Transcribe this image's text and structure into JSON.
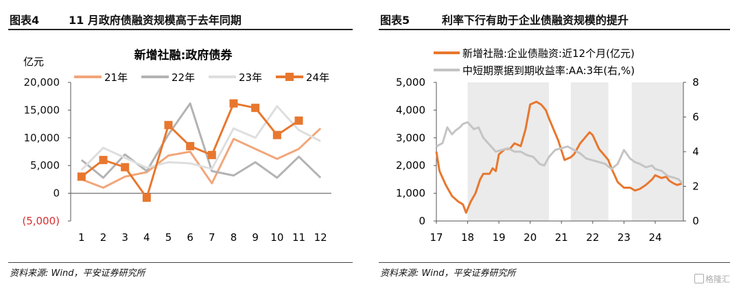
{
  "watermark": "格隆汇",
  "left": {
    "figure_id": "图表4",
    "figure_title": "11 月政府债融资规模高于去年同期",
    "source": "资料来源: Wind，平安证券研究所"
  },
  "right": {
    "figure_id": "图表5",
    "figure_title": "利率下行有助于企业债融资规模的提升",
    "source": "资料来源: Wind，平安证券研究所"
  },
  "chart_data": [
    {
      "type": "line",
      "title": "新增社融:政府债券",
      "ylabel": "亿元",
      "xlabel": "",
      "ylim": [
        -5000,
        20000
      ],
      "yticks": [
        {
          "value": 20000,
          "label": "20,000",
          "color": "#111111"
        },
        {
          "value": 15000,
          "label": "15,000",
          "color": "#111111"
        },
        {
          "value": 10000,
          "label": "10,000",
          "color": "#111111"
        },
        {
          "value": 5000,
          "label": "5,000",
          "color": "#111111"
        },
        {
          "value": 0,
          "label": "0",
          "color": "#111111"
        },
        {
          "value": -5000,
          "label": "(5,000)",
          "color": "#d62e2e"
        }
      ],
      "categories": [
        "1",
        "2",
        "3",
        "4",
        "5",
        "6",
        "7",
        "8",
        "9",
        "10",
        "11",
        "12"
      ],
      "legend_position": "top",
      "series": [
        {
          "name": "21年",
          "color": "#f2a67a",
          "marker": false,
          "values": [
            2500,
            1000,
            3000,
            3800,
            6800,
            7500,
            1800,
            9800,
            8000,
            6200,
            8000,
            11700
          ]
        },
        {
          "name": "22年",
          "color": "#b3b3b3",
          "marker": false,
          "values": [
            6000,
            2800,
            7000,
            4000,
            10600,
            16200,
            4000,
            3200,
            5600,
            2800,
            6600,
            2800
          ]
        },
        {
          "name": "23年",
          "color": "#dedede",
          "marker": false,
          "values": [
            4200,
            8200,
            6400,
            4600,
            5600,
            5400,
            4400,
            11700,
            10000,
            15700,
            11400,
            9400
          ]
        },
        {
          "name": "24年",
          "color": "#e8772e",
          "marker": true,
          "values": [
            3000,
            6000,
            4700,
            -800,
            12300,
            8500,
            6900,
            16200,
            15400,
            10500,
            13100,
            null
          ]
        }
      ]
    },
    {
      "type": "line",
      "title": "",
      "ylim": [
        0,
        5000
      ],
      "y2lim": [
        0,
        8
      ],
      "xlim": [
        2017,
        2024.9
      ],
      "yticks": [
        "5,000",
        "4,000",
        "3,000",
        "2,000",
        "1,000",
        "0"
      ],
      "y2ticks": [
        "8",
        "6",
        "4",
        "2",
        "0"
      ],
      "xticks": [
        "17",
        "18",
        "19",
        "20",
        "21",
        "22",
        "23",
        "24"
      ],
      "legend_position": "top-left",
      "shaded_periods": [
        [
          2018.0,
          2020.6
        ],
        [
          2021.3,
          2022.5
        ],
        [
          2023.25,
          2024.9
        ]
      ],
      "series": [
        {
          "name": "新增社融:企业债融资:近12个月(亿元)",
          "color": "#e8772e",
          "axis": "left",
          "x": [
            2017.0,
            2017.1,
            2017.3,
            2017.5,
            2017.7,
            2017.85,
            2017.95,
            2018.1,
            2018.25,
            2018.4,
            2018.5,
            2018.7,
            2018.8,
            2018.9,
            2019.0,
            2019.2,
            2019.35,
            2019.5,
            2019.7,
            2019.85,
            2020.0,
            2020.2,
            2020.35,
            2020.5,
            2020.6,
            2020.75,
            2020.9,
            2021.1,
            2021.3,
            2021.4,
            2021.6,
            2021.75,
            2021.9,
            2022.0,
            2022.2,
            2022.35,
            2022.5,
            2022.6,
            2022.8,
            2023.0,
            2023.2,
            2023.35,
            2023.5,
            2023.7,
            2023.9,
            2024.0,
            2024.1,
            2024.2,
            2024.35,
            2024.45,
            2024.6,
            2024.7,
            2024.85
          ],
          "y": [
            2500,
            1800,
            1300,
            900,
            700,
            600,
            300,
            700,
            1000,
            1500,
            1700,
            1700,
            1900,
            1800,
            2400,
            2600,
            2600,
            2800,
            2700,
            3300,
            4200,
            4300,
            4200,
            4000,
            3700,
            3300,
            2900,
            2200,
            2300,
            2400,
            2800,
            3000,
            3200,
            3100,
            2600,
            2400,
            2200,
            1900,
            1400,
            1200,
            1200,
            1100,
            1150,
            1300,
            1500,
            1650,
            1600,
            1550,
            1600,
            1450,
            1350,
            1300,
            1350
          ]
        },
        {
          "name": "中短期票据到期收益率:AA:3年(右,%)",
          "color": "#c4c4c4",
          "axis": "right",
          "x": [
            2017.0,
            2017.2,
            2017.35,
            2017.5,
            2017.6,
            2017.75,
            2017.85,
            2018.0,
            2018.2,
            2018.35,
            2018.5,
            2018.7,
            2018.9,
            2019.1,
            2019.3,
            2019.5,
            2019.7,
            2019.9,
            2020.1,
            2020.3,
            2020.45,
            2020.6,
            2020.8,
            2021.0,
            2021.2,
            2021.4,
            2021.6,
            2021.8,
            2022.0,
            2022.2,
            2022.4,
            2022.6,
            2022.8,
            2023.0,
            2023.2,
            2023.35,
            2023.5,
            2023.7,
            2023.9,
            2024.0,
            2024.2,
            2024.4,
            2024.6,
            2024.75,
            2024.85
          ],
          "y": [
            4.3,
            4.5,
            5.4,
            5.0,
            5.2,
            5.4,
            5.6,
            5.7,
            5.3,
            5.4,
            4.8,
            4.4,
            4.0,
            4.1,
            4.2,
            4.0,
            4.0,
            3.8,
            3.7,
            3.3,
            3.2,
            3.7,
            4.1,
            4.2,
            4.3,
            4.1,
            3.9,
            3.6,
            3.5,
            3.4,
            3.3,
            3.0,
            3.3,
            4.1,
            3.6,
            3.4,
            3.3,
            3.1,
            3.2,
            3.0,
            2.9,
            2.6,
            2.5,
            2.4,
            2.2
          ]
        }
      ]
    }
  ]
}
